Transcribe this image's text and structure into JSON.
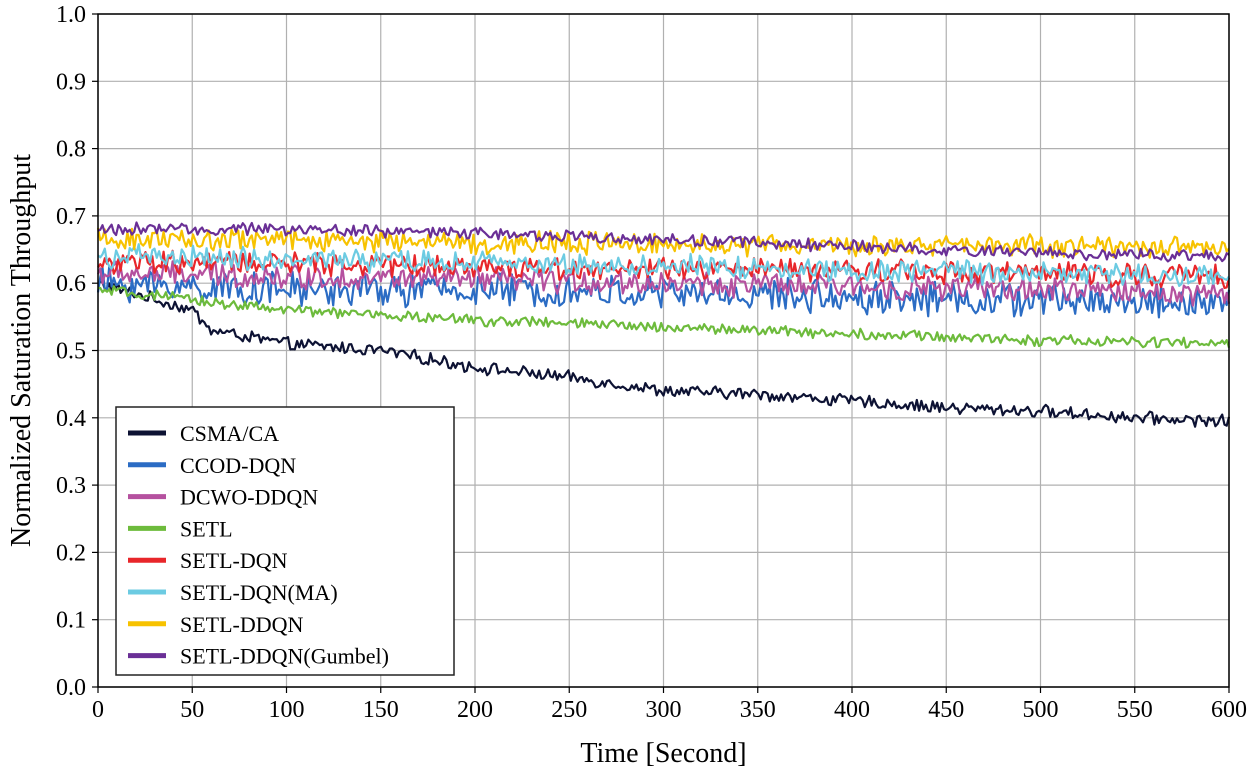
{
  "chart_data": {
    "type": "line",
    "title": "",
    "xlabel": "Time [Second]",
    "ylabel": "Normalized Saturation Throughput",
    "xlim": [
      0,
      600
    ],
    "ylim": [
      0.0,
      1.0
    ],
    "x_ticks": [
      0,
      50,
      100,
      150,
      200,
      250,
      300,
      350,
      400,
      450,
      500,
      550,
      600
    ],
    "y_ticks": [
      0.0,
      0.1,
      0.2,
      0.3,
      0.4,
      0.5,
      0.6,
      0.7,
      0.8,
      0.9,
      1.0
    ],
    "y_tick_labels": [
      "0.0",
      "0.1",
      "0.2",
      "0.3",
      "0.4",
      "0.5",
      "0.6",
      "0.7",
      "0.8",
      "0.9",
      "1.0"
    ],
    "grid": true,
    "legend_position": "lower-left",
    "series": [
      {
        "name": "CSMA/CA",
        "color": "#0d1233",
        "noise": 0.008,
        "x": [
          0,
          50,
          60,
          100,
          150,
          200,
          250,
          300,
          350,
          400,
          450,
          500,
          550,
          600
        ],
        "values": [
          0.6,
          0.56,
          0.53,
          0.51,
          0.5,
          0.475,
          0.46,
          0.44,
          0.435,
          0.425,
          0.415,
          0.41,
          0.4,
          0.395
        ]
      },
      {
        "name": "CCOD-DQN",
        "color": "#2b6cc4",
        "noise": 0.022,
        "x": [
          0,
          100,
          200,
          300,
          400,
          500,
          600
        ],
        "values": [
          0.6,
          0.59,
          0.59,
          0.585,
          0.58,
          0.575,
          0.57
        ]
      },
      {
        "name": "DCWO-DDQN",
        "color": "#b5519f",
        "noise": 0.016,
        "x": [
          0,
          100,
          200,
          300,
          400,
          500,
          600
        ],
        "values": [
          0.615,
          0.61,
          0.605,
          0.6,
          0.595,
          0.59,
          0.585
        ]
      },
      {
        "name": "SETL",
        "color": "#6dbb3c",
        "noise": 0.007,
        "x": [
          0,
          50,
          100,
          200,
          300,
          400,
          500,
          600
        ],
        "values": [
          0.59,
          0.575,
          0.56,
          0.545,
          0.535,
          0.525,
          0.515,
          0.51
        ]
      },
      {
        "name": "SETL-DQN",
        "color": "#e8262a",
        "noise": 0.015,
        "x": [
          0,
          100,
          200,
          300,
          400,
          500,
          600
        ],
        "values": [
          0.63,
          0.63,
          0.625,
          0.62,
          0.62,
          0.615,
          0.61
        ]
      },
      {
        "name": "SETL-DQN(MA)",
        "color": "#6ccbe2",
        "noise": 0.015,
        "x": [
          0,
          100,
          200,
          300,
          400,
          500,
          600
        ],
        "values": [
          0.64,
          0.635,
          0.63,
          0.625,
          0.62,
          0.615,
          0.61
        ]
      },
      {
        "name": "SETL-DDQN",
        "color": "#f7c200",
        "noise": 0.014,
        "x": [
          0,
          100,
          200,
          300,
          400,
          500,
          600
        ],
        "values": [
          0.665,
          0.665,
          0.66,
          0.66,
          0.655,
          0.655,
          0.65
        ]
      },
      {
        "name": "SETL-DDQN(Gumbel)",
        "color": "#6a2f96",
        "noise": 0.008,
        "x": [
          0,
          100,
          200,
          300,
          400,
          500,
          600
        ],
        "values": [
          0.68,
          0.68,
          0.675,
          0.665,
          0.655,
          0.645,
          0.64
        ]
      }
    ]
  }
}
